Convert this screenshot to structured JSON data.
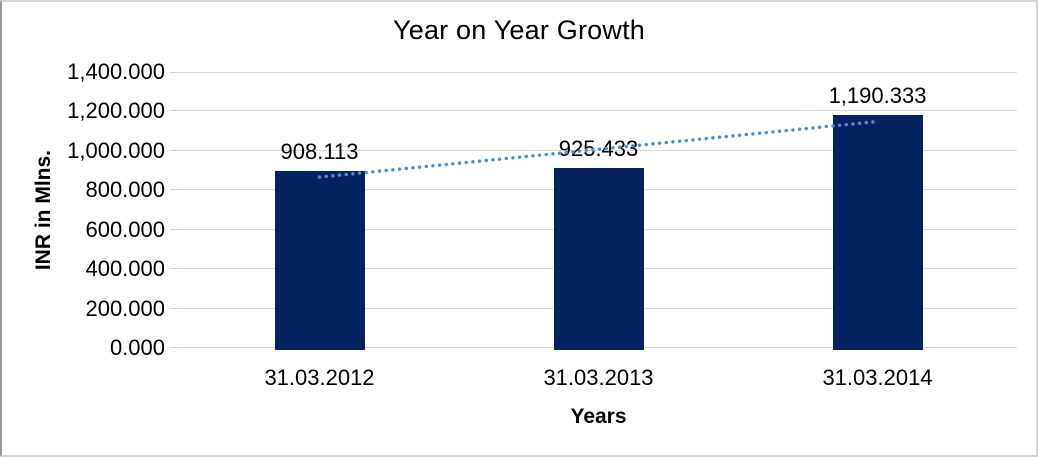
{
  "chart_data": {
    "type": "bar",
    "title": "Year on Year Growth",
    "xlabel": "Years",
    "ylabel": "INR in Mlns.",
    "categories": [
      "31.03.2012",
      "31.03.2013",
      "31.03.2014"
    ],
    "values": [
      908.113,
      925.433,
      1190.333
    ],
    "data_labels": [
      "908.113",
      "925.433",
      "1,190.333"
    ],
    "ylim": [
      0,
      1400
    ],
    "ytick_step": 200,
    "ytick_labels": [
      "0.000",
      "200.000",
      "400.000",
      "600.000",
      "800.000",
      "1,000.000",
      "1,200.000",
      "1,400.000"
    ],
    "grid": true,
    "legend": "none",
    "bar_color": "#03225f",
    "gridline_color": "#d9d9d9",
    "trendline": {
      "type": "linear",
      "style": "dotted",
      "color": "#4f8ed3"
    }
  }
}
